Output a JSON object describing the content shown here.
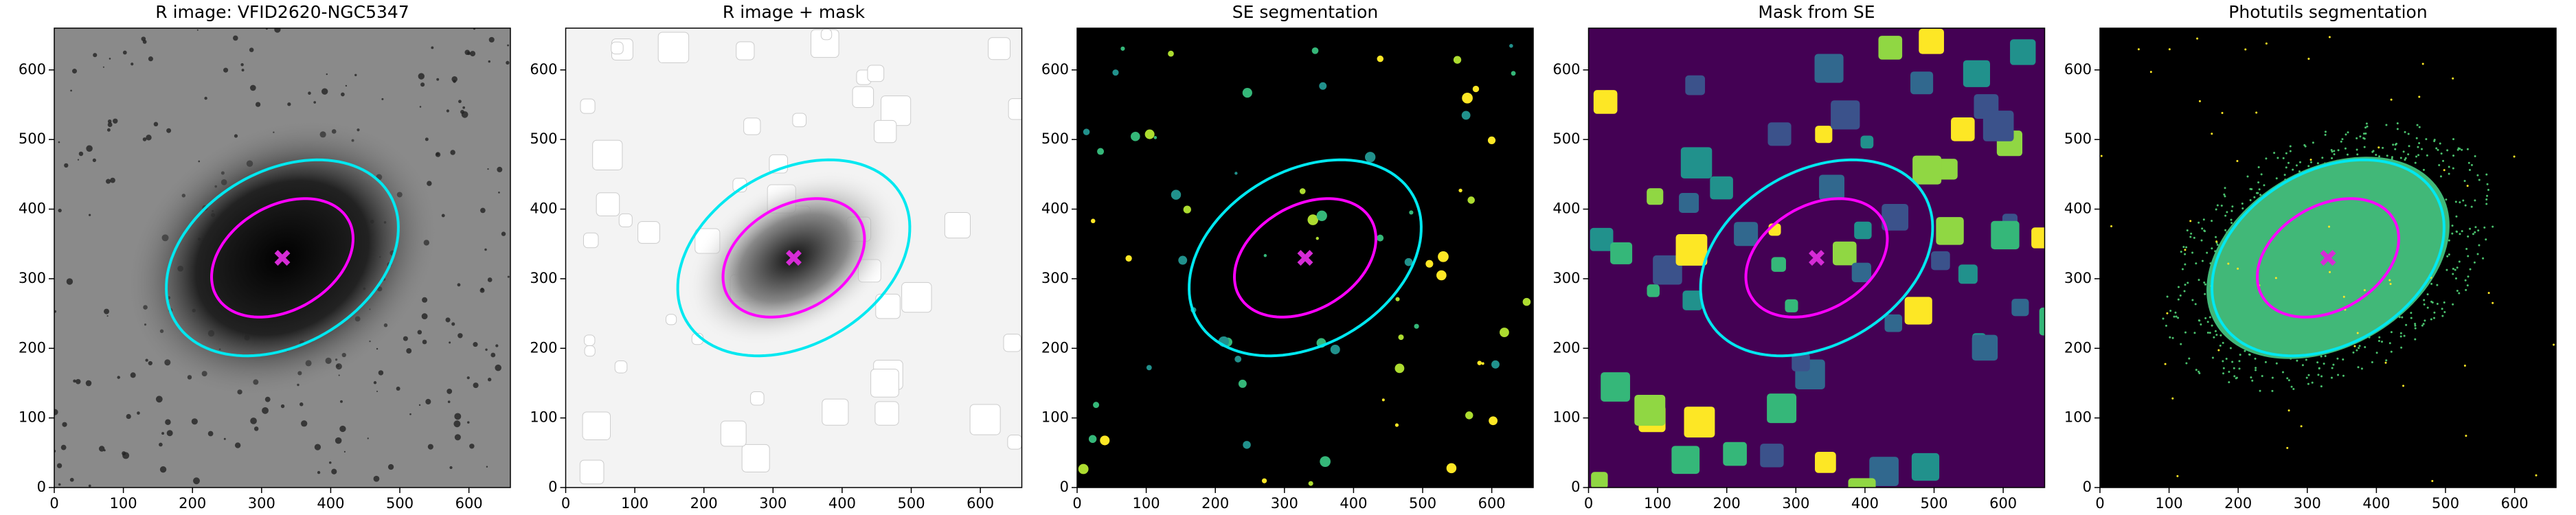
{
  "chart_data": [
    {
      "type": "image",
      "title": "R image: VFID2620-NGC5347",
      "background": "#8a8a8a",
      "xlim": [
        0,
        660
      ],
      "ylim": [
        0,
        660
      ],
      "xticks": [
        0,
        100,
        200,
        300,
        400,
        500,
        600
      ],
      "yticks": [
        0,
        100,
        200,
        300,
        400,
        500,
        600
      ],
      "ellipses": [
        {
          "color": "#00e8f0",
          "center": [
            330,
            330
          ],
          "a": 180,
          "b": 125,
          "angle": 30
        },
        {
          "color": "#ff00ff",
          "center": [
            330,
            330
          ],
          "a": 110,
          "b": 75,
          "angle": 30
        }
      ],
      "marker": {
        "color": "#d62bd6",
        "x": 330,
        "y": 330
      }
    },
    {
      "type": "image",
      "title": "R image + mask",
      "background": "#f3f3f3",
      "xlim": [
        0,
        660
      ],
      "ylim": [
        0,
        660
      ],
      "xticks": [
        0,
        100,
        200,
        300,
        400,
        500,
        600
      ],
      "yticks": [
        0,
        100,
        200,
        300,
        400,
        500,
        600
      ],
      "ellipses": [
        {
          "color": "#00e8f0",
          "center": [
            330,
            330
          ],
          "a": 180,
          "b": 125,
          "angle": 30
        },
        {
          "color": "#ff00ff",
          "center": [
            330,
            330
          ],
          "a": 110,
          "b": 75,
          "angle": 30
        }
      ],
      "marker": {
        "color": "#d62bd6",
        "x": 330,
        "y": 330
      }
    },
    {
      "type": "image",
      "title": "SE segmentation",
      "background": "#000000",
      "xlim": [
        0,
        660
      ],
      "ylim": [
        0,
        660
      ],
      "xticks": [
        0,
        100,
        200,
        300,
        400,
        500,
        600
      ],
      "yticks": [
        0,
        100,
        200,
        300,
        400,
        500,
        600
      ],
      "ellipses": [
        {
          "color": "#00e8f0",
          "center": [
            330,
            330
          ],
          "a": 180,
          "b": 125,
          "angle": 30
        },
        {
          "color": "#ff00ff",
          "center": [
            330,
            330
          ],
          "a": 110,
          "b": 75,
          "angle": 30
        }
      ],
      "marker": {
        "color": "#d62bd6",
        "x": 330,
        "y": 330
      }
    },
    {
      "type": "image",
      "title": "Mask from SE",
      "background": "#440154",
      "xlim": [
        0,
        660
      ],
      "ylim": [
        0,
        660
      ],
      "xticks": [
        0,
        100,
        200,
        300,
        400,
        500,
        600
      ],
      "yticks": [
        0,
        100,
        200,
        300,
        400,
        500,
        600
      ],
      "ellipses": [
        {
          "color": "#00e8f0",
          "center": [
            330,
            330
          ],
          "a": 180,
          "b": 125,
          "angle": 30
        },
        {
          "color": "#ff00ff",
          "center": [
            330,
            330
          ],
          "a": 110,
          "b": 75,
          "angle": 30
        }
      ],
      "marker": {
        "color": "#d62bd6",
        "x": 330,
        "y": 330
      }
    },
    {
      "type": "image",
      "title": "Photutils segmentation",
      "background": "#000000",
      "xlim": [
        0,
        660
      ],
      "ylim": [
        0,
        660
      ],
      "xticks": [
        0,
        100,
        200,
        300,
        400,
        500,
        600
      ],
      "yticks": [
        0,
        100,
        200,
        300,
        400,
        500,
        600
      ],
      "ellipses": [
        {
          "color": "#00e8f0",
          "center": [
            330,
            330
          ],
          "a": 180,
          "b": 125,
          "angle": 30
        },
        {
          "color": "#ff00ff",
          "center": [
            330,
            330
          ],
          "a": 110,
          "b": 75,
          "angle": 30
        }
      ],
      "marker": {
        "color": "#d62bd6",
        "x": 330,
        "y": 330
      }
    }
  ]
}
